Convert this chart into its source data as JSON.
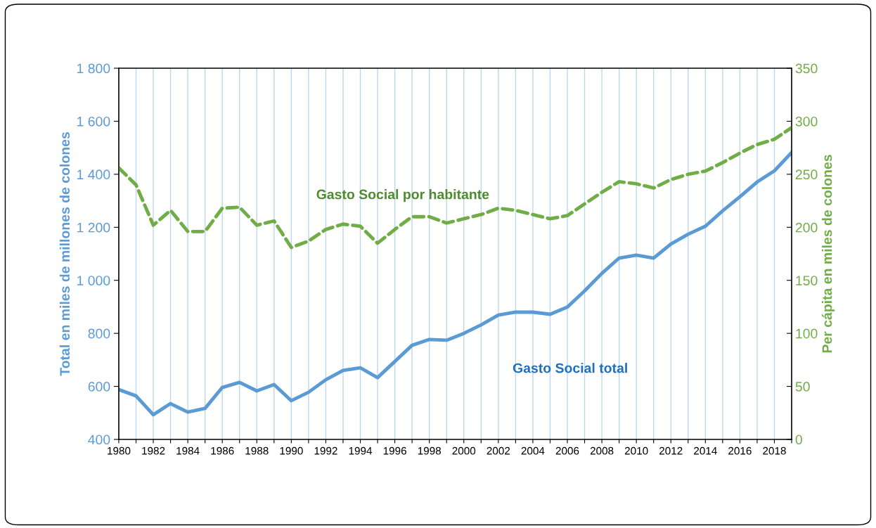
{
  "chart_data": {
    "type": "line",
    "x": [
      1980,
      1981,
      1982,
      1983,
      1984,
      1985,
      1986,
      1987,
      1988,
      1989,
      1990,
      1991,
      1992,
      1993,
      1994,
      1995,
      1996,
      1997,
      1998,
      1999,
      2000,
      2001,
      2002,
      2003,
      2004,
      2005,
      2006,
      2007,
      2008,
      2009,
      2010,
      2011,
      2012,
      2013,
      2014,
      2015,
      2016,
      2017,
      2018,
      2019
    ],
    "series": [
      {
        "color": "#5b9bd5",
        "line_style": "solid",
        "values": [
          588,
          564,
          493,
          535,
          503,
          517,
          596,
          615,
          583,
          607,
          546,
          578,
          625,
          660,
          670,
          633,
          694,
          755,
          777,
          774,
          800,
          832,
          869,
          880,
          880,
          872,
          899,
          960,
          1026,
          1084,
          1095,
          1084,
          1137,
          1174,
          1204,
          1262,
          1315,
          1371,
          1413,
          1482
        ]
      },
      {
        "color": "#70ad47",
        "line_style": "dashed",
        "axis": "y2",
        "values": [
          256,
          240,
          202,
          216,
          196,
          196,
          218,
          219,
          202,
          206,
          181,
          187,
          198,
          203,
          201,
          185,
          198,
          210,
          210,
          204,
          208,
          212,
          218,
          216,
          212,
          208,
          211,
          222,
          233,
          243,
          241,
          237,
          245,
          250,
          253,
          261,
          270,
          278,
          283,
          294
        ]
      }
    ],
    "ylabel": "Total en miles de millones de colones",
    "y2label": "Per cápita en miles de colones",
    "annotations": [
      "Gasto Social total",
      "Gasto Social por habitante"
    ],
    "xlim": [
      1980,
      2019
    ],
    "xticks": [
      1980,
      {
        "value": 1981,
        "label": null
      },
      1982,
      {
        "value": 1983,
        "label": null
      },
      1984,
      {
        "value": 1985,
        "label": null
      },
      1986,
      {
        "value": 1987,
        "label": null
      },
      1988,
      {
        "value": 1989,
        "label": null
      },
      1990,
      {
        "value": 1991,
        "label": null
      },
      1992,
      {
        "value": 1993,
        "label": null
      },
      1994,
      {
        "value": 1995,
        "label": null
      },
      1996,
      {
        "value": 1997,
        "label": null
      },
      1998,
      {
        "value": 1999,
        "label": null
      },
      2000,
      {
        "value": 2001,
        "label": null
      },
      2002,
      {
        "value": 2003,
        "label": null
      },
      2004,
      {
        "value": 2005,
        "label": null
      },
      2006,
      {
        "value": 2007,
        "label": null
      },
      2008,
      {
        "value": 2009,
        "label": null
      },
      2010,
      {
        "value": 2011,
        "label": null
      },
      2012,
      {
        "value": 2013,
        "label": null
      },
      2014,
      {
        "value": 2015,
        "label": null
      },
      2016,
      {
        "value": 2017,
        "label": null
      },
      2018,
      {
        "value": 2019,
        "label": null
      }
    ],
    "ylim": [
      400,
      1800
    ],
    "yticks": [
      {
        "value": 400,
        "label": "400"
      },
      {
        "value": 600,
        "label": "600"
      },
      {
        "value": 800,
        "label": "800"
      },
      {
        "value": 1000,
        "label": "1 000"
      },
      {
        "value": 1200,
        "label": "1 200"
      },
      {
        "value": 1400,
        "label": "1 400"
      },
      {
        "value": 1600,
        "label": "1 600"
      },
      {
        "value": 1800,
        "label": "1 800"
      }
    ],
    "y2lim": [
      0,
      350
    ],
    "y2ticks": [
      0,
      50,
      100,
      150,
      200,
      250,
      300,
      350
    ],
    "grid": "x",
    "legend": false,
    "marker": "none"
  }
}
